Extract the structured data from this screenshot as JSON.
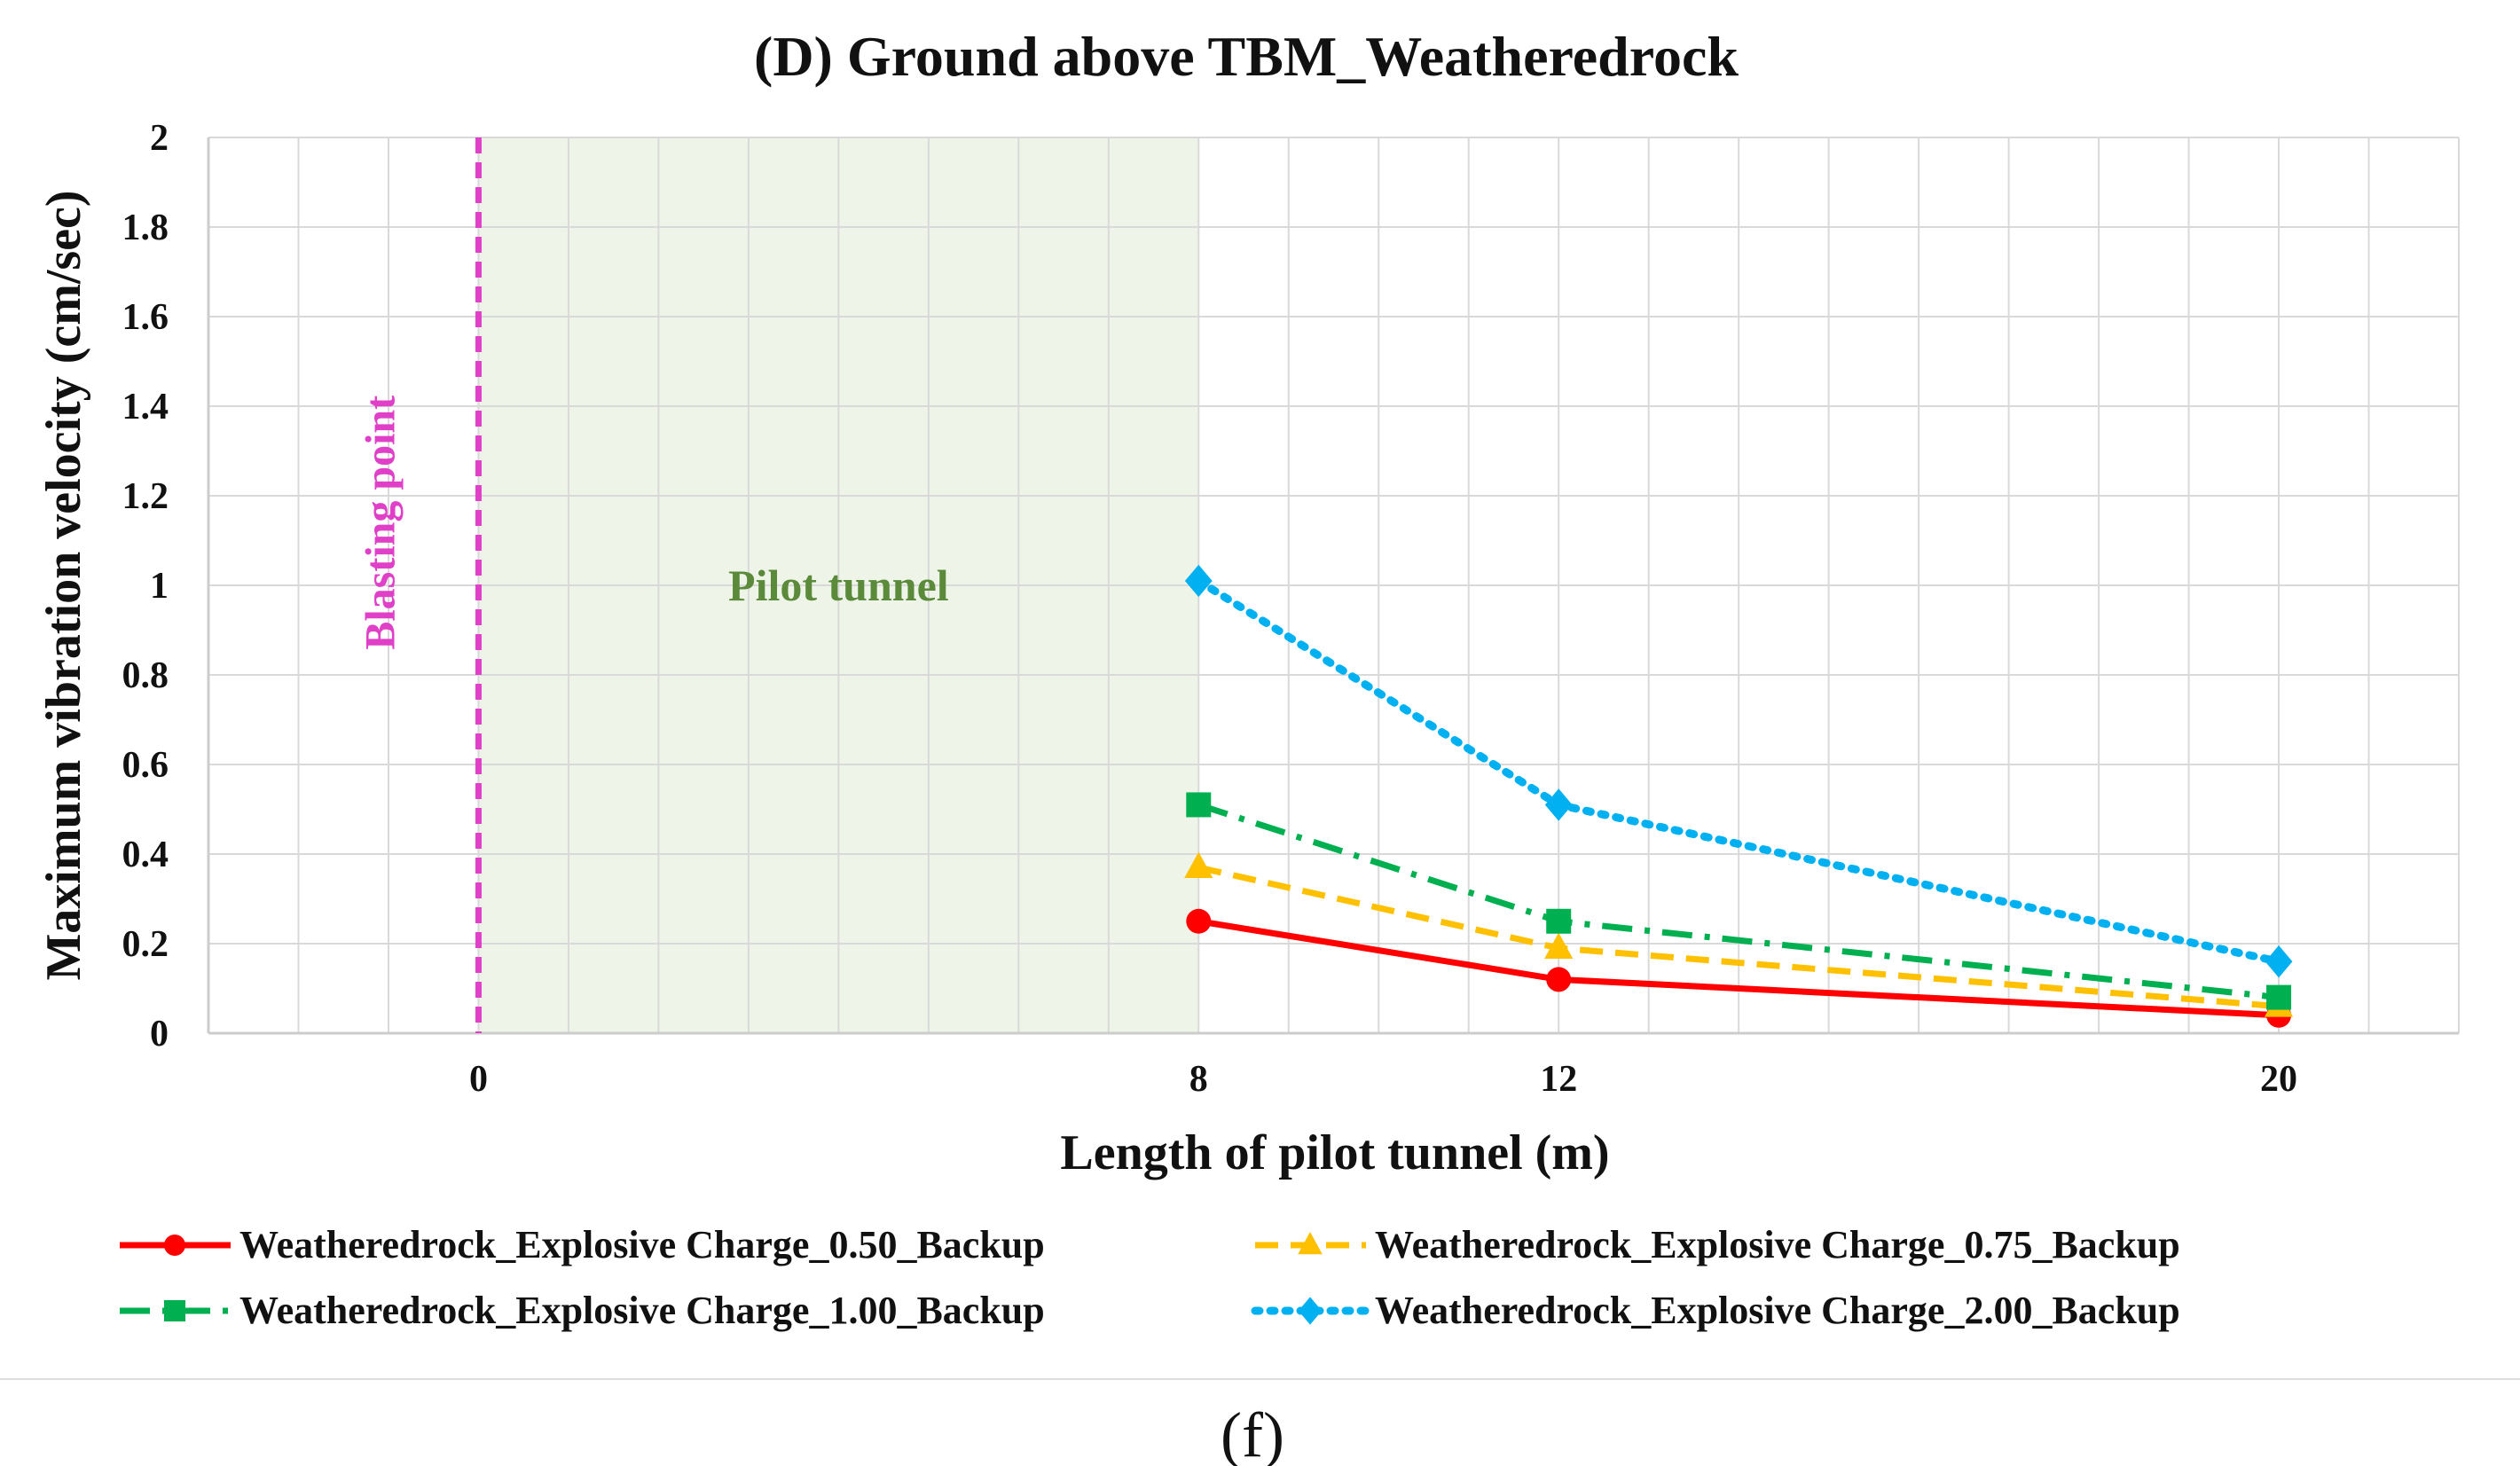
{
  "chart_data": {
    "type": "line",
    "title": "(D) Ground above TBM_Weatheredrock",
    "xlabel": "Length of pilot tunnel (m)",
    "ylabel": "Maximum vibration velocity (cm/sec)",
    "xlim": [
      -3,
      22
    ],
    "ylim": [
      0,
      2
    ],
    "x_ticks": [
      0,
      8,
      12,
      20
    ],
    "x_tick_labels": [
      "0",
      "8",
      "12",
      "20"
    ],
    "y_ticks": [
      0,
      0.2,
      0.4,
      0.6,
      0.8,
      1,
      1.2,
      1.4,
      1.6,
      1.8,
      2
    ],
    "y_tick_labels": [
      "0",
      "0.2",
      "0.4",
      "0.6",
      "0.8",
      "1",
      "1.2",
      "1.4",
      "1.6",
      "1.8",
      "2"
    ],
    "grid": true,
    "x": [
      8,
      12,
      20
    ],
    "series": [
      {
        "name": "Weatheredrock_Explosive Charge_0.50_Backup",
        "values": [
          0.25,
          0.12,
          0.04
        ],
        "color": "#ff0000",
        "marker": "circle",
        "dash": "solid"
      },
      {
        "name": "Weatheredrock_Explosive Charge_0.75_Backup",
        "values": [
          0.37,
          0.19,
          0.06
        ],
        "color": "#ffc000",
        "marker": "triangle",
        "dash": "dashed"
      },
      {
        "name": "Weatheredrock_Explosive Charge_1.00_Backup",
        "values": [
          0.51,
          0.25,
          0.08
        ],
        "color": "#00b050",
        "marker": "square",
        "dash": "dashdot"
      },
      {
        "name": "Weatheredrock_Explosive Charge_2.00_Backup",
        "values": [
          1.01,
          0.51,
          0.16
        ],
        "color": "#00b0f0",
        "marker": "diamond",
        "dash": "dotted"
      }
    ],
    "annotations": {
      "blasting_point": {
        "label": "Blasting point",
        "x": 0,
        "color": "#e040c8"
      },
      "pilot_tunnel": {
        "label": "Pilot tunnel",
        "x_range": [
          0,
          8
        ],
        "color": "#eef5e8"
      }
    },
    "legend_position": "bottom"
  },
  "caption": "(f)"
}
